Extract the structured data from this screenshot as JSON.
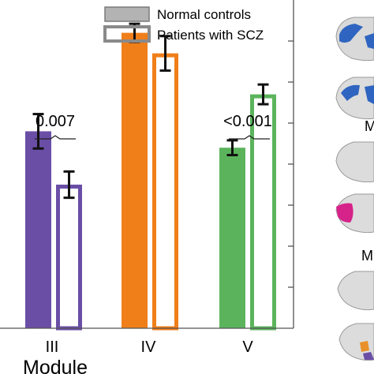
{
  "chart_data": {
    "type": "bar",
    "xlabel": "Module",
    "categories": [
      "III",
      "IV",
      "V"
    ],
    "series": [
      {
        "name": "Normal controls",
        "values": [
          0.24,
          0.36,
          0.22
        ],
        "err": [
          0.021,
          0.011,
          0.009
        ]
      },
      {
        "name": "Patients with SCZ",
        "values": [
          0.175,
          0.335,
          0.285
        ],
        "err": [
          0.016,
          0.021,
          0.012
        ]
      }
    ],
    "significance": [
      {
        "category": "III",
        "label": "0.007"
      },
      {
        "category": "V",
        "label": "<0.001"
      }
    ],
    "colors": {
      "III": "#6a4ea6",
      "IV": "#f07f1a",
      "V": "#5bb45c",
      "legend_fill": "#b3b3b3",
      "legend_edge": "#7a7a7a"
    },
    "ylim": [
      0.0,
      0.4
    ],
    "grid": false,
    "legend_position": "top-right"
  }
}
